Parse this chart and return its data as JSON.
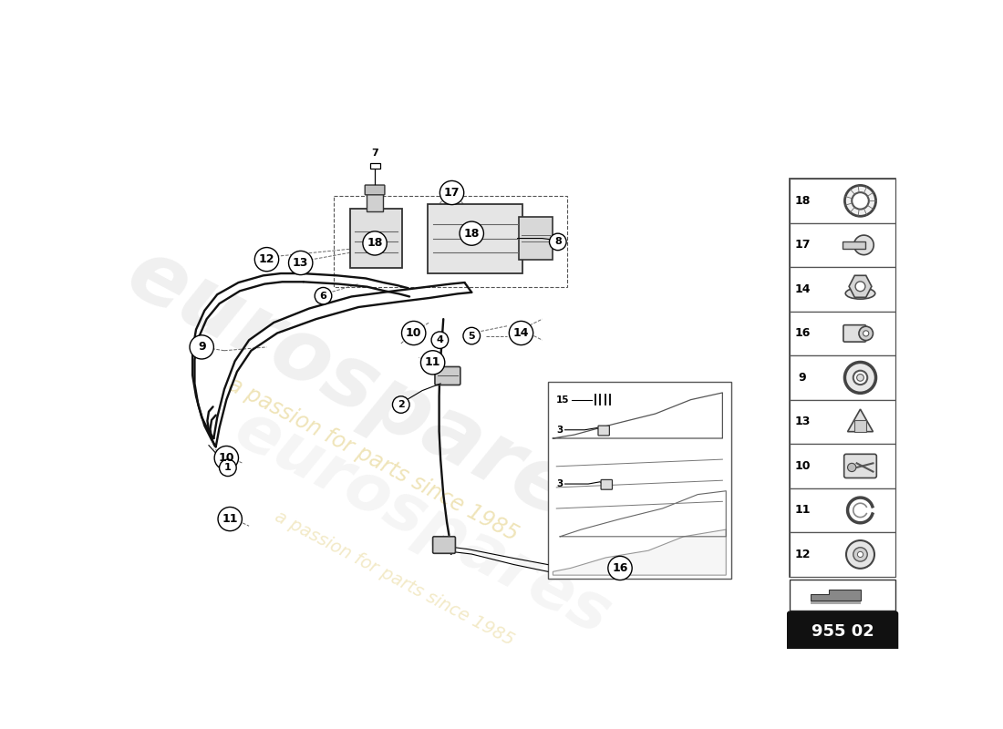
{
  "bg_color": "#ffffff",
  "part_code": "955 02",
  "sidebar_items": [
    18,
    17,
    14,
    16,
    9,
    13,
    10,
    11,
    12
  ]
}
